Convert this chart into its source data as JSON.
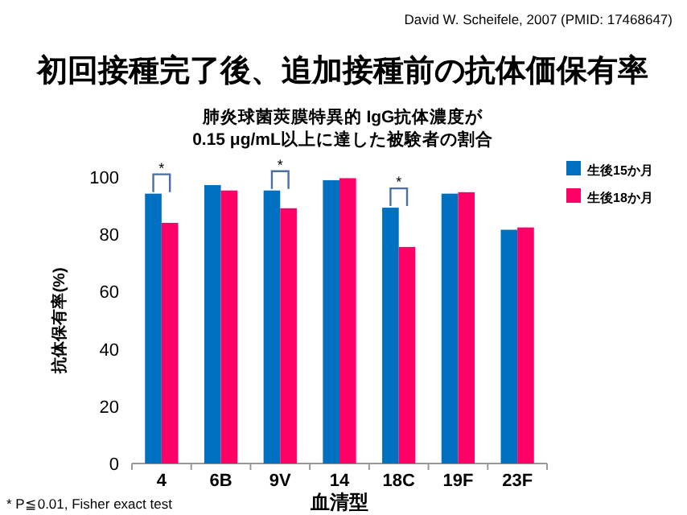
{
  "chart_data": {
    "type": "bar",
    "title": "初回接種完了後、追加接種前の抗体価保有率",
    "subtitle": "肺炎球菌莢膜特異的 IgG抗体濃度が\n0.15 μg/mL以上に達した被験者の割合",
    "xlabel": "血清型",
    "ylabel": "抗体保有率(%)",
    "categories": [
      "4",
      "6B",
      "9V",
      "14",
      "18C",
      "19F",
      "23F"
    ],
    "series": [
      {
        "name": "生後15か月",
        "color": "#0070c0",
        "values": [
          94.2,
          97.2,
          95.3,
          98.9,
          89.3,
          94.2,
          81.6
        ]
      },
      {
        "name": "生後18か月",
        "color": "#ff0066",
        "values": [
          84,
          95.3,
          89.1,
          99.6,
          75.6,
          94.7,
          82.4
        ]
      }
    ],
    "ylim": [
      0,
      100
    ],
    "yticks": [
      0,
      20,
      40,
      60,
      80,
      100
    ],
    "grid": false,
    "legend": "right",
    "annotations": [
      "David W. Scheifele, 2007 (PMID: 17468647)",
      {
        "text": "*",
        "x": "4",
        "y": 94.2
      },
      {
        "text": "*",
        "x": "9V",
        "y": 95.3
      },
      {
        "text": "*",
        "x": "18C",
        "y": 89.3
      },
      "* P≦0.01, Fisher exact test"
    ]
  }
}
